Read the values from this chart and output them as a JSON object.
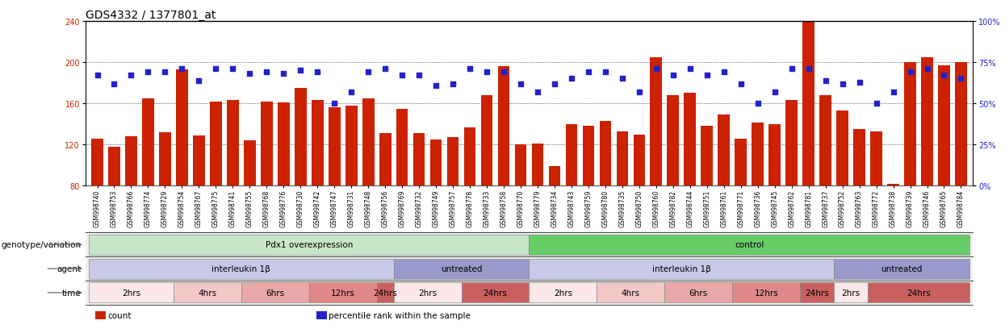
{
  "title": "GDS4332 / 1377801_at",
  "samples": [
    "GSM998740",
    "GSM998753",
    "GSM998766",
    "GSM998774",
    "GSM998729",
    "GSM998754",
    "GSM998767",
    "GSM998775",
    "GSM998741",
    "GSM998755",
    "GSM998768",
    "GSM998776",
    "GSM998730",
    "GSM998742",
    "GSM998747",
    "GSM998731",
    "GSM998748",
    "GSM998756",
    "GSM998769",
    "GSM998732",
    "GSM998749",
    "GSM998757",
    "GSM998778",
    "GSM998733",
    "GSM998758",
    "GSM998770",
    "GSM998779",
    "GSM998734",
    "GSM998743",
    "GSM998759",
    "GSM998780",
    "GSM998735",
    "GSM998750",
    "GSM998760",
    "GSM998782",
    "GSM998744",
    "GSM998751",
    "GSM998761",
    "GSM998771",
    "GSM998736",
    "GSM998745",
    "GSM998762",
    "GSM998781",
    "GSM998737",
    "GSM998752",
    "GSM998763",
    "GSM998772",
    "GSM998738",
    "GSM998739",
    "GSM998746",
    "GSM998765",
    "GSM998784"
  ],
  "bar_values": [
    126,
    118,
    128,
    165,
    132,
    193,
    129,
    162,
    163,
    124,
    162,
    161,
    175,
    163,
    156,
    158,
    165,
    131,
    155,
    131,
    125,
    127,
    137,
    168,
    196,
    120,
    121,
    99,
    140,
    138,
    143,
    133,
    130,
    205,
    168,
    170,
    138,
    149,
    126,
    141,
    140,
    163,
    250,
    168,
    153,
    135,
    133,
    82,
    200,
    205,
    197,
    200
  ],
  "percentile_values": [
    67,
    62,
    67,
    69,
    69,
    71,
    64,
    71,
    71,
    68,
    69,
    68,
    70,
    69,
    50,
    57,
    69,
    71,
    67,
    67,
    61,
    62,
    71,
    69,
    69,
    62,
    57,
    62,
    65,
    69,
    69,
    65,
    57,
    71,
    67,
    71,
    67,
    69,
    62,
    50,
    57,
    71,
    71,
    64,
    62,
    63,
    50,
    57,
    69,
    71,
    67,
    65
  ],
  "ylim_left": [
    80,
    240
  ],
  "yticks_left": [
    80,
    120,
    160,
    200,
    240
  ],
  "ylim_right": [
    0,
    100
  ],
  "yticks_right": [
    0,
    25,
    50,
    75,
    100
  ],
  "bar_color": "#cc2200",
  "dot_color": "#2222cc",
  "background_color": "#ffffff",
  "genotype_groups": [
    {
      "label": "Pdx1 overexpression",
      "start": 0,
      "end": 26,
      "color": "#c8e6c8"
    },
    {
      "label": "control",
      "start": 26,
      "end": 52,
      "color": "#66cc66"
    }
  ],
  "agent_groups": [
    {
      "label": "interleukin 1β",
      "start": 0,
      "end": 18,
      "color": "#c8c8e8"
    },
    {
      "label": "untreated",
      "start": 18,
      "end": 26,
      "color": "#9999cc"
    },
    {
      "label": "interleukin 1β",
      "start": 26,
      "end": 44,
      "color": "#c8c8e8"
    },
    {
      "label": "untreated",
      "start": 44,
      "end": 52,
      "color": "#9999cc"
    }
  ],
  "time_groups": [
    {
      "label": "2hrs",
      "start": 0,
      "end": 5,
      "color": "#fce8e8"
    },
    {
      "label": "4hrs",
      "start": 5,
      "end": 9,
      "color": "#f5c8c8"
    },
    {
      "label": "6hrs",
      "start": 9,
      "end": 13,
      "color": "#e8a8a8"
    },
    {
      "label": "12hrs",
      "start": 13,
      "end": 17,
      "color": "#e08888"
    },
    {
      "label": "24hrs",
      "start": 17,
      "end": 18,
      "color": "#c86060"
    },
    {
      "label": "2hrs",
      "start": 18,
      "end": 22,
      "color": "#fce8e8"
    },
    {
      "label": "24hrs",
      "start": 22,
      "end": 26,
      "color": "#c86060"
    },
    {
      "label": "2hrs",
      "start": 26,
      "end": 30,
      "color": "#fce8e8"
    },
    {
      "label": "4hrs",
      "start": 30,
      "end": 34,
      "color": "#f5c8c8"
    },
    {
      "label": "6hrs",
      "start": 34,
      "end": 38,
      "color": "#e8a8a8"
    },
    {
      "label": "12hrs",
      "start": 38,
      "end": 42,
      "color": "#e08888"
    },
    {
      "label": "24hrs",
      "start": 42,
      "end": 44,
      "color": "#c86060"
    },
    {
      "label": "2hrs",
      "start": 44,
      "end": 46,
      "color": "#fce8e8"
    },
    {
      "label": "24hrs",
      "start": 46,
      "end": 52,
      "color": "#c86060"
    }
  ],
  "legend": [
    {
      "color": "#cc2200",
      "label": "count"
    },
    {
      "color": "#2222cc",
      "label": "percentile rank within the sample"
    }
  ],
  "title_fontsize": 10,
  "tick_fontsize": 5.5,
  "label_fontsize": 7.5,
  "row_label_fontsize": 7.5
}
